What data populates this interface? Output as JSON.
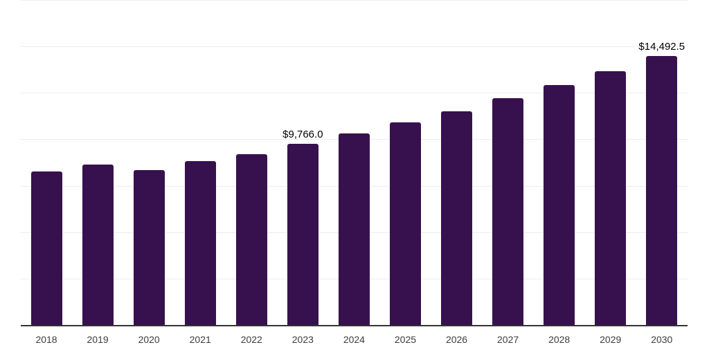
{
  "chart_data": {
    "type": "bar",
    "title": "",
    "xlabel": "",
    "ylabel": "",
    "categories": [
      "2018",
      "2019",
      "2020",
      "2021",
      "2022",
      "2023",
      "2024",
      "2025",
      "2026",
      "2027",
      "2028",
      "2029",
      "2030"
    ],
    "values": [
      8270,
      8630,
      8360,
      8810,
      9210,
      9766.0,
      10300,
      10900,
      11500,
      12200,
      12930,
      13650,
      14492.5
    ],
    "value_labels": [
      "",
      "",
      "",
      "",
      "",
      "$9,766.0",
      "",
      "",
      "",
      "",
      "",
      "",
      "$14,492.5"
    ],
    "ylim": [
      0,
      17500
    ],
    "gridline_step": 2500,
    "grid": "horizontal-light",
    "legend": "none",
    "colors": {
      "bar": "#37114e",
      "axis_line": "#333333",
      "gridline": "#ededed",
      "value_label": "#000000",
      "tick_label": "#3d3d3d",
      "background": "#ffffff"
    }
  }
}
